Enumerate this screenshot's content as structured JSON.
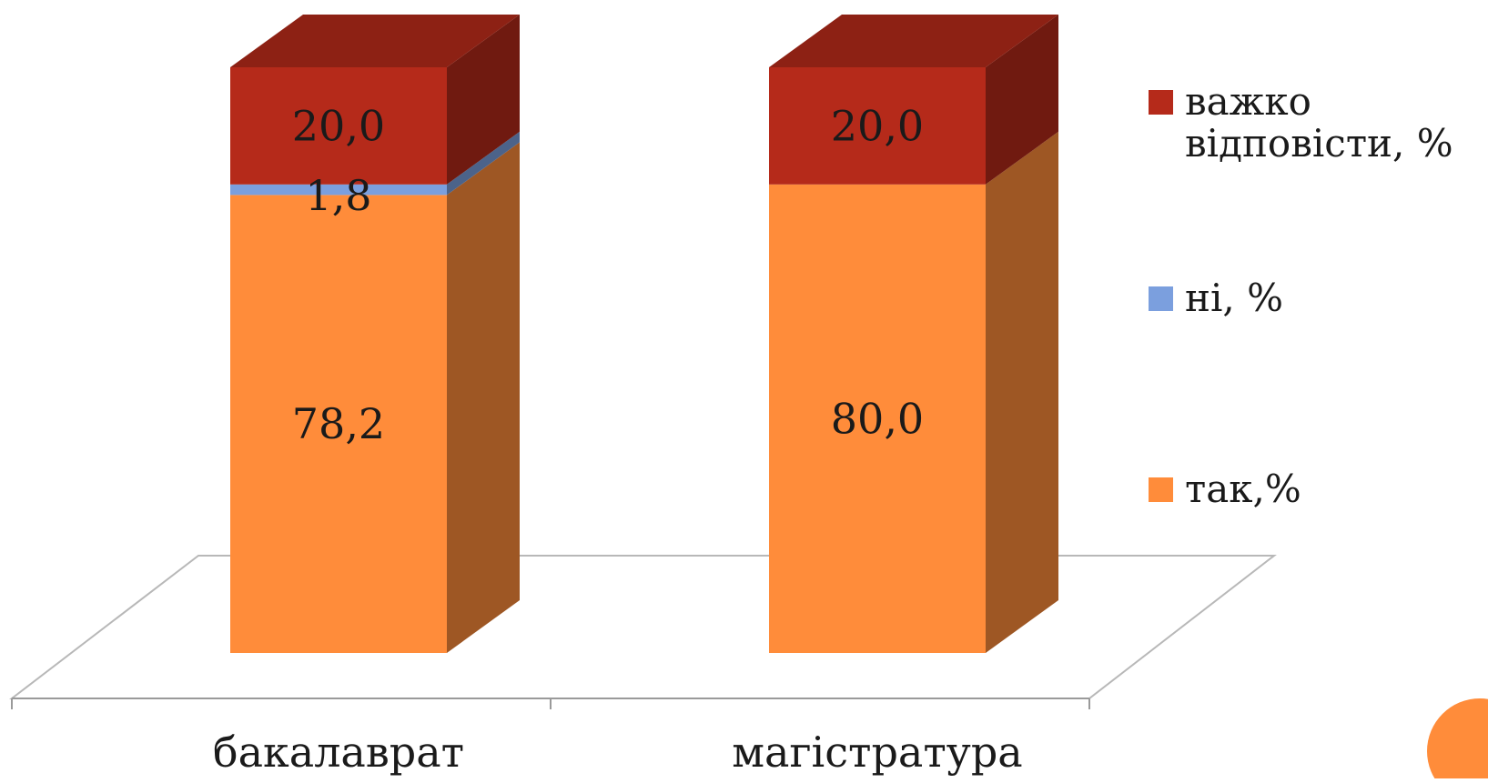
{
  "chart_data": {
    "type": "bar",
    "stacked": true,
    "style": "3d",
    "categories": [
      "бакалаврат",
      "магістратура"
    ],
    "series": [
      {
        "name": "так,%",
        "color": "#FF8C3A",
        "values": [
          78.2,
          80.0
        ],
        "labels": [
          "78,2",
          "80,0"
        ]
      },
      {
        "name": "ні, %",
        "color": "#7B9FDE",
        "values": [
          1.8,
          0.0
        ],
        "labels": [
          "1,8",
          ""
        ]
      },
      {
        "name": "важко відповісти, %",
        "legend_lines": [
          "важко",
          "відповісти, %"
        ],
        "color": "#B52A1A",
        "values": [
          20.0,
          20.0
        ],
        "labels": [
          "20,0",
          "20,0"
        ]
      }
    ],
    "ylim": [
      0,
      100
    ],
    "legend_position": "right",
    "grid": false
  },
  "decor": {
    "accent_circle_color": "#FF8C3A"
  }
}
